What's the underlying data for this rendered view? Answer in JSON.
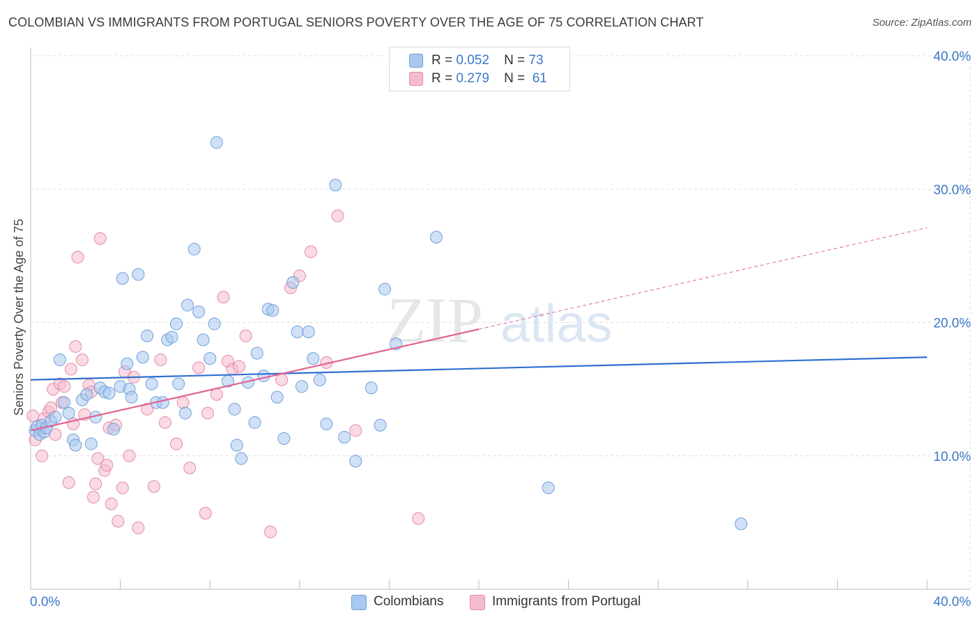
{
  "header": {
    "title": "COLOMBIAN VS IMMIGRANTS FROM PORTUGAL SENIORS POVERTY OVER THE AGE OF 75 CORRELATION CHART",
    "source": "Source: ZipAtlas.com"
  },
  "legend": {
    "colombians": {
      "r_label": "R =",
      "r_value": "0.052",
      "n_label": "N =",
      "n_value": "73"
    },
    "portugal": {
      "r_label": "R =",
      "r_value": "0.279",
      "n_label": "N =",
      "n_value": "61"
    }
  },
  "bottom_legend": {
    "colombians": "Colombians",
    "portugal": "Immigrants from Portugal"
  },
  "watermark": {
    "zip": "ZIP",
    "atlas": "atlas"
  },
  "colors": {
    "blue_fill": "#a9c8f0",
    "blue_stroke": "#6f9fd8",
    "blue_line": "#2f6fd0",
    "pink_fill": "#f5bccd",
    "pink_stroke": "#e48aa6",
    "pink_line": "#e0638e",
    "tick_label": "#3a78c9",
    "grid": "#dcdcdc"
  },
  "chart_data": {
    "type": "scatter",
    "title": "COLOMBIAN VS IMMIGRANTS FROM PORTUGAL SENIORS POVERTY OVER THE AGE OF 75 CORRELATION CHART",
    "xlabel": "",
    "ylabel": "Seniors Poverty Over the Age of 75",
    "xlim": [
      0,
      40
    ],
    "ylim": [
      0,
      40
    ],
    "x_tick_labels": [
      "0.0%",
      "40.0%"
    ],
    "y_ticks": [
      10,
      20,
      30,
      40
    ],
    "y_tick_labels": [
      "10.0%",
      "20.0%",
      "30.0%",
      "40.0%"
    ],
    "grid": true,
    "legend_position": "top-center",
    "series": [
      {
        "name": "Colombians",
        "color": "#a9c8f0",
        "r": 0.052,
        "n": 73,
        "trend": {
          "x": [
            0,
            40
          ],
          "y": [
            15.7,
            17.4
          ],
          "dashed_after": null
        },
        "points": [
          [
            0.2,
            11.9
          ],
          [
            0.3,
            12.2
          ],
          [
            0.4,
            11.6
          ],
          [
            0.5,
            12.3
          ],
          [
            0.6,
            11.8
          ],
          [
            0.7,
            12.1
          ],
          [
            0.9,
            12.6
          ],
          [
            1.1,
            12.9
          ],
          [
            1.3,
            17.2
          ],
          [
            1.5,
            14.0
          ],
          [
            1.7,
            13.2
          ],
          [
            1.9,
            11.2
          ],
          [
            2.0,
            10.8
          ],
          [
            2.3,
            14.2
          ],
          [
            2.5,
            14.6
          ],
          [
            2.7,
            10.9
          ],
          [
            2.9,
            12.9
          ],
          [
            3.1,
            15.1
          ],
          [
            3.3,
            14.8
          ],
          [
            3.5,
            14.7
          ],
          [
            3.7,
            12.0
          ],
          [
            4.0,
            15.2
          ],
          [
            4.1,
            23.3
          ],
          [
            4.3,
            16.9
          ],
          [
            4.4,
            15.0
          ],
          [
            4.5,
            14.4
          ],
          [
            4.8,
            23.6
          ],
          [
            5.0,
            17.4
          ],
          [
            5.2,
            19.0
          ],
          [
            5.4,
            15.4
          ],
          [
            5.6,
            14.0
          ],
          [
            5.9,
            14.0
          ],
          [
            6.1,
            18.7
          ],
          [
            6.3,
            18.9
          ],
          [
            6.5,
            19.9
          ],
          [
            6.6,
            15.4
          ],
          [
            6.9,
            13.2
          ],
          [
            7.0,
            21.3
          ],
          [
            7.3,
            25.5
          ],
          [
            7.5,
            20.8
          ],
          [
            7.7,
            18.7
          ],
          [
            8.0,
            17.3
          ],
          [
            8.2,
            19.9
          ],
          [
            8.3,
            33.5
          ],
          [
            8.8,
            15.6
          ],
          [
            9.1,
            13.5
          ],
          [
            9.2,
            10.8
          ],
          [
            9.4,
            9.8
          ],
          [
            9.7,
            15.5
          ],
          [
            10.0,
            12.5
          ],
          [
            10.1,
            17.7
          ],
          [
            10.4,
            16.0
          ],
          [
            10.6,
            21.0
          ],
          [
            10.8,
            20.9
          ],
          [
            11.0,
            14.4
          ],
          [
            11.3,
            11.3
          ],
          [
            11.7,
            23.0
          ],
          [
            11.9,
            19.3
          ],
          [
            12.1,
            15.2
          ],
          [
            12.4,
            19.3
          ],
          [
            12.6,
            17.3
          ],
          [
            12.9,
            15.7
          ],
          [
            13.2,
            12.4
          ],
          [
            13.6,
            30.3
          ],
          [
            14.0,
            11.4
          ],
          [
            14.5,
            9.6
          ],
          [
            15.2,
            15.1
          ],
          [
            15.6,
            12.3
          ],
          [
            15.8,
            22.5
          ],
          [
            16.3,
            18.4
          ],
          [
            18.1,
            26.4
          ],
          [
            23.1,
            7.6
          ],
          [
            31.7,
            4.9
          ]
        ]
      },
      {
        "name": "Immigrants from Portugal",
        "color": "#f5bccd",
        "r": 0.279,
        "n": 61,
        "trend": {
          "x": [
            0,
            40
          ],
          "y": [
            11.9,
            27.1
          ],
          "solid_until_x": 20
        },
        "points": [
          [
            0.1,
            13.0
          ],
          [
            0.2,
            11.2
          ],
          [
            0.4,
            12.0
          ],
          [
            0.5,
            10.0
          ],
          [
            0.6,
            12.8
          ],
          [
            0.8,
            13.3
          ],
          [
            0.9,
            13.6
          ],
          [
            1.0,
            15.0
          ],
          [
            1.1,
            11.6
          ],
          [
            1.3,
            15.4
          ],
          [
            1.4,
            14.0
          ],
          [
            1.5,
            15.2
          ],
          [
            1.7,
            8.0
          ],
          [
            1.8,
            16.5
          ],
          [
            1.9,
            12.4
          ],
          [
            2.0,
            18.2
          ],
          [
            2.1,
            24.9
          ],
          [
            2.3,
            17.2
          ],
          [
            2.4,
            13.1
          ],
          [
            2.6,
            15.3
          ],
          [
            2.7,
            14.8
          ],
          [
            2.8,
            6.9
          ],
          [
            2.9,
            7.9
          ],
          [
            3.0,
            9.8
          ],
          [
            3.1,
            26.3
          ],
          [
            3.3,
            8.9
          ],
          [
            3.4,
            9.3
          ],
          [
            3.5,
            12.1
          ],
          [
            3.6,
            6.4
          ],
          [
            3.8,
            12.3
          ],
          [
            3.9,
            5.1
          ],
          [
            4.1,
            7.6
          ],
          [
            4.2,
            16.3
          ],
          [
            4.4,
            10.0
          ],
          [
            4.6,
            15.9
          ],
          [
            4.8,
            4.6
          ],
          [
            5.2,
            13.5
          ],
          [
            5.5,
            7.7
          ],
          [
            5.8,
            17.2
          ],
          [
            6.0,
            12.5
          ],
          [
            6.5,
            10.9
          ],
          [
            6.8,
            14.0
          ],
          [
            7.1,
            9.1
          ],
          [
            7.5,
            16.6
          ],
          [
            7.8,
            5.7
          ],
          [
            7.9,
            13.2
          ],
          [
            8.3,
            14.6
          ],
          [
            8.6,
            21.9
          ],
          [
            8.8,
            17.1
          ],
          [
            9.0,
            16.5
          ],
          [
            9.3,
            16.7
          ],
          [
            9.6,
            19.0
          ],
          [
            10.7,
            4.3
          ],
          [
            11.2,
            15.7
          ],
          [
            11.6,
            22.6
          ],
          [
            12.0,
            23.5
          ],
          [
            12.5,
            25.3
          ],
          [
            13.2,
            17.0
          ],
          [
            13.7,
            28.0
          ],
          [
            17.3,
            5.3
          ],
          [
            14.5,
            11.9
          ]
        ]
      }
    ]
  }
}
